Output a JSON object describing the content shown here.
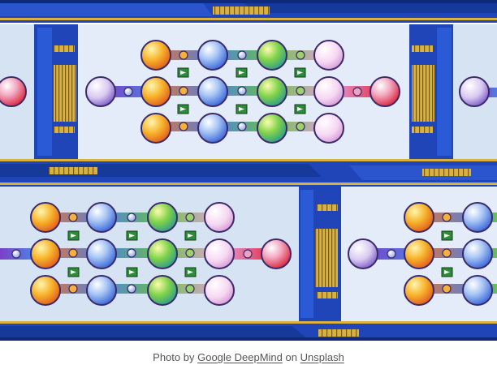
{
  "caption": {
    "prefix": "Photo by",
    "author": "Google DeepMind",
    "joiner": "on",
    "site": "Unsplash"
  },
  "colors": {
    "frame_blue": "#1f45b8",
    "frame_dark": "#0f2a7a",
    "gold": "#d8b23c",
    "panel": "#d6e3f3",
    "arrow_box": "#2e8b3a"
  },
  "image": {
    "subject": "illustration of neural-network style node grids",
    "content_icons": [
      "arrow-right-icon"
    ]
  }
}
